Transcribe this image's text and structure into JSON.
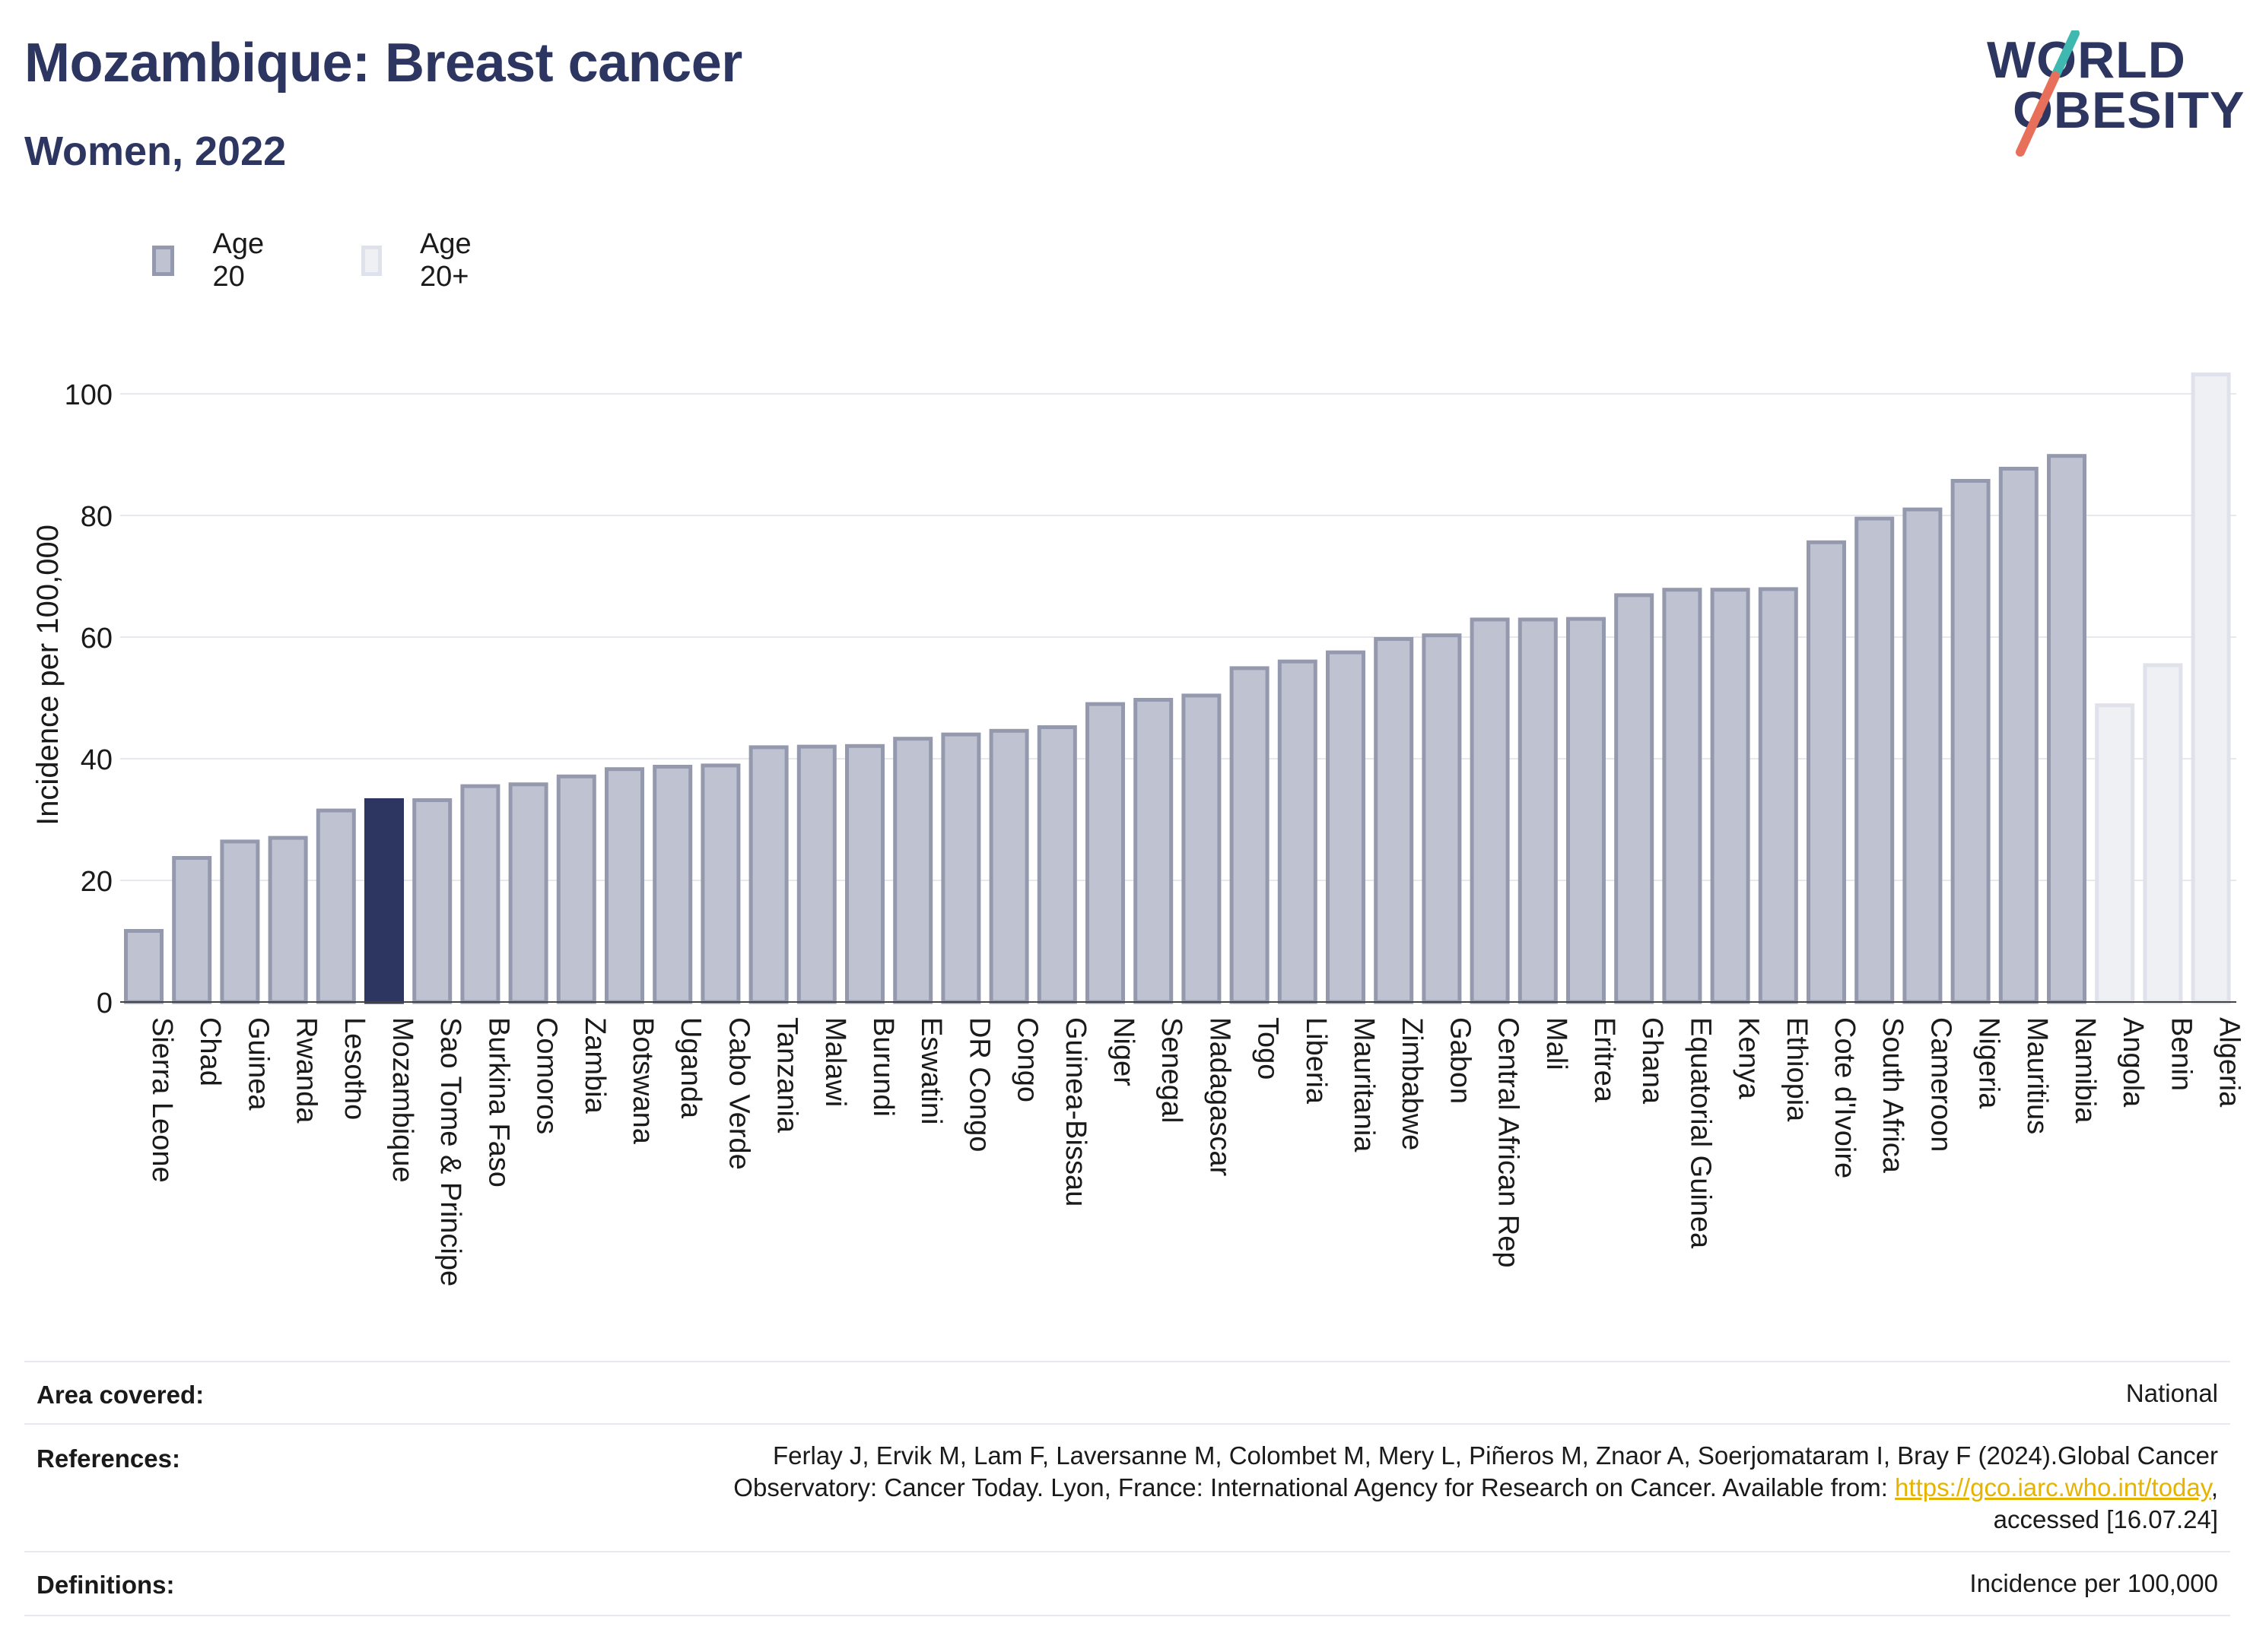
{
  "header": {
    "title": "Mozambique: Breast cancer",
    "subtitle": "Women, 2022"
  },
  "logo": {
    "line1": "WORLD",
    "line2": "OBESITY",
    "colors": {
      "text": "#2d3561",
      "slash_top": "#3fb8b0",
      "slash_bottom": "#e8705a"
    }
  },
  "legend": [
    {
      "label": "Age 20",
      "fill": "#bfc2d0",
      "stroke": "#9599ae"
    },
    {
      "label": "Age 20+",
      "fill": "#eef0f4",
      "stroke": "#dfe2ea"
    }
  ],
  "chart_data": {
    "type": "bar",
    "ylabel": "Incidence per 100,000",
    "xlabel": "",
    "ylim": [
      0,
      105
    ],
    "yticks": [
      0,
      20,
      40,
      60,
      80,
      100
    ],
    "grid": true,
    "highlight": "Mozambique",
    "colors": {
      "age20_fill": "#bfc2d0",
      "age20_stroke": "#9599ae",
      "age20plus_fill": "#eef0f4",
      "age20plus_stroke": "#dfe2ea",
      "highlight": "#2d3561"
    },
    "bars": [
      {
        "category": "Sierra Leone",
        "value": 12,
        "series": "Age 20"
      },
      {
        "category": "Chad",
        "value": 24,
        "series": "Age 20"
      },
      {
        "category": "Guinea",
        "value": 26.7,
        "series": "Age 20"
      },
      {
        "category": "Rwanda",
        "value": 27.3,
        "series": "Age 20"
      },
      {
        "category": "Lesotho",
        "value": 31.8,
        "series": "Age 20"
      },
      {
        "category": "Mozambique",
        "value": 33.5,
        "series": "Age 20"
      },
      {
        "category": "Sao Tome & Principe",
        "value": 33.5,
        "series": "Age 20"
      },
      {
        "category": "Burkina Faso",
        "value": 35.8,
        "series": "Age 20"
      },
      {
        "category": "Comoros",
        "value": 36.1,
        "series": "Age 20"
      },
      {
        "category": "Zambia",
        "value": 37.4,
        "series": "Age 20"
      },
      {
        "category": "Botswana",
        "value": 38.6,
        "series": "Age 20"
      },
      {
        "category": "Uganda",
        "value": 39,
        "series": "Age 20"
      },
      {
        "category": "Cabo Verde",
        "value": 39.2,
        "series": "Age 20"
      },
      {
        "category": "Tanzania",
        "value": 42.2,
        "series": "Age 20"
      },
      {
        "category": "Malawi",
        "value": 42.3,
        "series": "Age 20"
      },
      {
        "category": "Burundi",
        "value": 42.4,
        "series": "Age 20"
      },
      {
        "category": "Eswatini",
        "value": 43.6,
        "series": "Age 20"
      },
      {
        "category": "DR Congo",
        "value": 44.3,
        "series": "Age 20"
      },
      {
        "category": "Congo",
        "value": 44.9,
        "series": "Age 20"
      },
      {
        "category": "Guinea-Bissau",
        "value": 45.5,
        "series": "Age 20"
      },
      {
        "category": "Niger",
        "value": 49.3,
        "series": "Age 20"
      },
      {
        "category": "Senegal",
        "value": 50,
        "series": "Age 20"
      },
      {
        "category": "Madagascar",
        "value": 50.7,
        "series": "Age 20"
      },
      {
        "category": "Togo",
        "value": 55.2,
        "series": "Age 20"
      },
      {
        "category": "Liberia",
        "value": 56.3,
        "series": "Age 20"
      },
      {
        "category": "Mauritania",
        "value": 57.8,
        "series": "Age 20"
      },
      {
        "category": "Zimbabwe",
        "value": 60,
        "series": "Age 20"
      },
      {
        "category": "Gabon",
        "value": 60.6,
        "series": "Age 20"
      },
      {
        "category": "Central African Rep",
        "value": 63.2,
        "series": "Age 20"
      },
      {
        "category": "Mali",
        "value": 63.2,
        "series": "Age 20"
      },
      {
        "category": "Eritrea",
        "value": 63.3,
        "series": "Age 20"
      },
      {
        "category": "Ghana",
        "value": 67.2,
        "series": "Age 20"
      },
      {
        "category": "Equatorial Guinea",
        "value": 68.1,
        "series": "Age 20"
      },
      {
        "category": "Kenya",
        "value": 68.1,
        "series": "Age 20"
      },
      {
        "category": "Ethiopia",
        "value": 68.2,
        "series": "Age 20"
      },
      {
        "category": "Cote d'Ivoire",
        "value": 75.9,
        "series": "Age 20"
      },
      {
        "category": "South Africa",
        "value": 79.8,
        "series": "Age 20"
      },
      {
        "category": "Cameroon",
        "value": 81.3,
        "series": "Age 20"
      },
      {
        "category": "Nigeria",
        "value": 86,
        "series": "Age 20"
      },
      {
        "category": "Mauritius",
        "value": 88,
        "series": "Age 20"
      },
      {
        "category": "Namibia",
        "value": 90.1,
        "series": "Age 20"
      },
      {
        "category": "Angola",
        "value": 49.1,
        "series": "Age 20+"
      },
      {
        "category": "Benin",
        "value": 55.7,
        "series": "Age 20+"
      },
      {
        "category": "Algeria",
        "value": 103.5,
        "series": "Age 20+"
      }
    ]
  },
  "info": {
    "area": {
      "key": "Area covered:",
      "value": "National"
    },
    "references": {
      "key": "References:",
      "line1": "Ferlay J, Ervik M, Lam F, Laversanne M, Colombet M, Mery L, Piñeros M, Znaor A, Soerjomataram I, Bray F (2024).Global Cancer",
      "line2_prefix": "Observatory: Cancer Today. Lyon, France: International Agency for Research on Cancer. Available from: ",
      "link_text": "https://gco.iarc.who.int/today",
      "line2_suffix": ",",
      "line3": "accessed [16.07.24]",
      "link_color": "#e6b400"
    },
    "definitions": {
      "key": "Definitions:",
      "value": "Incidence per 100,000"
    }
  }
}
